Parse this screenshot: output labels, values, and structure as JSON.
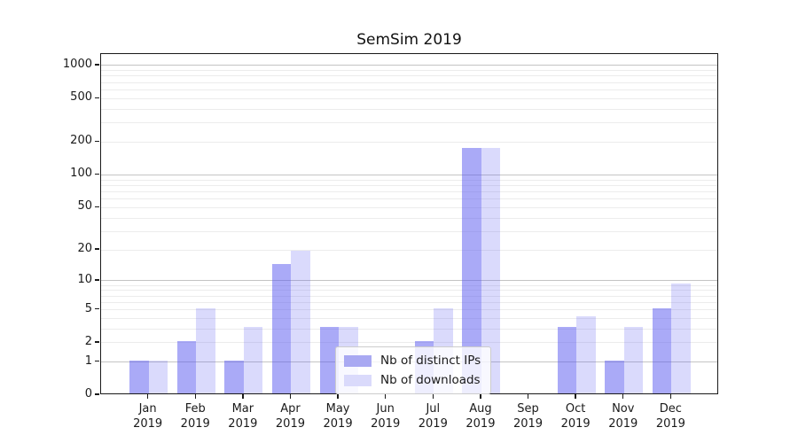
{
  "title": "SemSim 2019",
  "chart_data": {
    "type": "bar",
    "categories": [
      "Jan 2019",
      "Feb 2019",
      "Mar 2019",
      "Apr 2019",
      "May 2019",
      "Jun 2019",
      "Jul 2019",
      "Aug 2019",
      "Sep 2019",
      "Oct 2019",
      "Nov 2019",
      "Dec 2019"
    ],
    "months": [
      "Jan",
      "Feb",
      "Mar",
      "Apr",
      "May",
      "Jun",
      "Jul",
      "Aug",
      "Sep",
      "Oct",
      "Nov",
      "Dec"
    ],
    "year": "2019",
    "series": [
      {
        "name": "Nb of distinct IPs",
        "values": [
          1,
          2,
          1,
          14,
          3,
          0,
          2,
          170,
          0,
          3,
          1,
          5
        ],
        "color": "rgba(85,85,240,0.50)",
        "swatch_color": "#a9a9f2"
      },
      {
        "name": "Nb of downloads",
        "values": [
          1,
          5,
          3,
          19,
          3,
          0,
          5,
          170,
          0,
          4,
          3,
          9
        ],
        "color": "rgba(85,85,240,0.22)",
        "swatch_color": "#dadafb"
      }
    ],
    "title": "SemSim 2019",
    "xlabel": "",
    "ylabel": "",
    "yscale": "log1p",
    "yticks": [
      0,
      1,
      2,
      5,
      10,
      20,
      50,
      100,
      200,
      500,
      1000
    ],
    "ylim": [
      0,
      1273
    ],
    "xlim": [
      -1,
      12
    ],
    "bar_width": 0.4,
    "grid": "both",
    "grid_major": [
      1,
      10,
      100,
      1000
    ],
    "grid_minor": [
      2,
      3,
      4,
      5,
      6,
      7,
      8,
      9,
      20,
      30,
      40,
      50,
      60,
      70,
      80,
      90,
      200,
      300,
      400,
      500,
      600,
      700,
      800,
      900
    ],
    "legend_position": "lower center inside",
    "colors": {
      "major_grid": "#c4c4c4",
      "minor_grid": "#ececec",
      "spine": "#1a1a1a",
      "text": "#1a1a1a"
    }
  }
}
